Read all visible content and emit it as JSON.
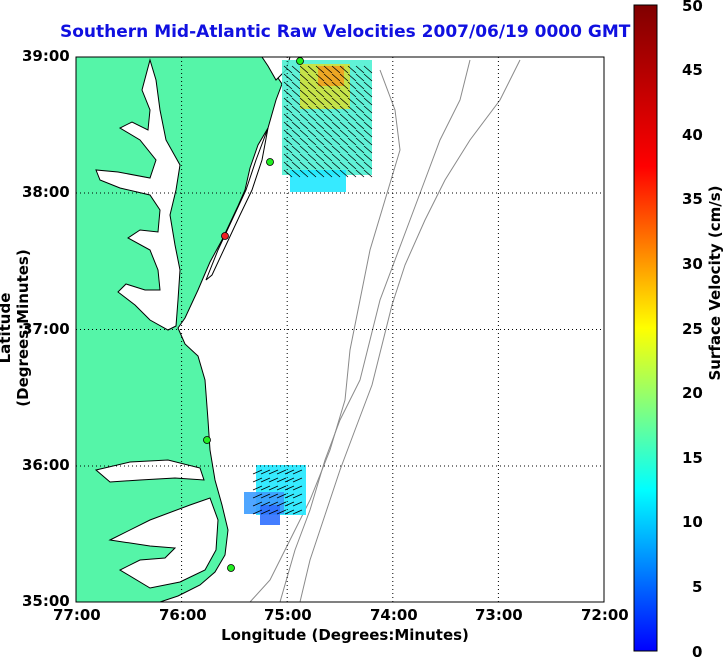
{
  "title": "Southern Mid-Atlantic Raw Velocities 2007/06/19 0000 GMT",
  "xaxis": {
    "label": "Longitude (Degrees:Minutes)",
    "ticks": [
      "77:00",
      "76:00",
      "75:00",
      "74:00",
      "73:00",
      "72:00"
    ]
  },
  "yaxis": {
    "label": "Latitude (Degrees:Minutes)",
    "ticks": [
      "39:00",
      "38:00",
      "37:00",
      "36:00",
      "35:00"
    ]
  },
  "colorbar": {
    "label": "Surface Velocity (cm/s)",
    "ticks": [
      "50",
      "45",
      "40",
      "35",
      "30",
      "25",
      "20",
      "15",
      "10",
      "5",
      "0"
    ],
    "min": 0,
    "max": 50
  },
  "colors": {
    "land": "#55f5a8",
    "coast": "#000000",
    "bathymetry": "#8a8a8a",
    "title": "#1010e0",
    "station": "#22ee22",
    "station_offline": "#ee2222"
  }
}
